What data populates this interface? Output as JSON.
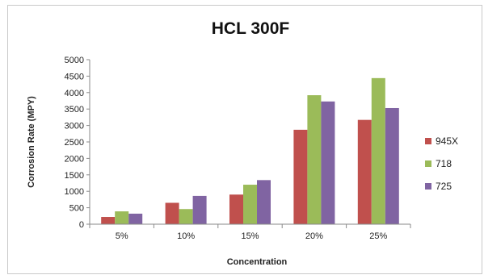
{
  "chart_data": {
    "type": "bar",
    "title": "HCL 300F",
    "xlabel": "Concentration",
    "ylabel": "Corrosion Rate (MPY)",
    "categories": [
      "5%",
      "10%",
      "15%",
      "20%",
      "25%"
    ],
    "ylim": [
      0,
      5000
    ],
    "yticks": [
      0,
      500,
      1000,
      1500,
      2000,
      2500,
      3000,
      3500,
      4000,
      4500,
      5000
    ],
    "grid": false,
    "legend_position": "right",
    "series": [
      {
        "name": "945X",
        "color": "#c0504d",
        "values": [
          220,
          650,
          900,
          2870,
          3170
        ]
      },
      {
        "name": "718",
        "color": "#9bbb59",
        "values": [
          390,
          460,
          1200,
          3920,
          4440
        ]
      },
      {
        "name": "725",
        "color": "#8064a2",
        "values": [
          320,
          860,
          1340,
          3730,
          3530
        ]
      }
    ]
  }
}
